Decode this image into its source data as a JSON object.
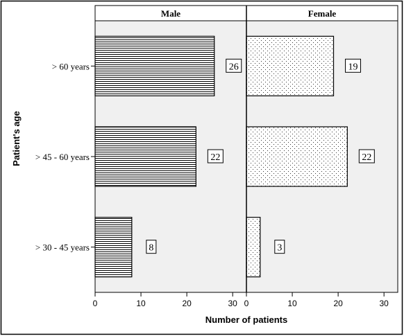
{
  "chart_data": {
    "type": "bar",
    "orientation": "horizontal",
    "facet_by": "gender",
    "panels": [
      {
        "name": "Male",
        "values": [
          26,
          22,
          8
        ]
      },
      {
        "name": "Female",
        "values": [
          19,
          22,
          3
        ]
      }
    ],
    "categories": [
      "> 60 years",
      "> 45 - 60 years",
      "> 30 - 45 years"
    ],
    "xlabel": "Number of patients",
    "ylabel": "Patient's age",
    "xlim": [
      0,
      33
    ],
    "xticks": [
      0,
      10,
      20,
      30
    ],
    "grid": false,
    "legend": "none",
    "data_labels": true,
    "colors": {
      "plot_background": "#f0f0f0",
      "bar_fill": "#ffffff",
      "bar_pattern": "#000000",
      "axis": "#000000"
    }
  }
}
